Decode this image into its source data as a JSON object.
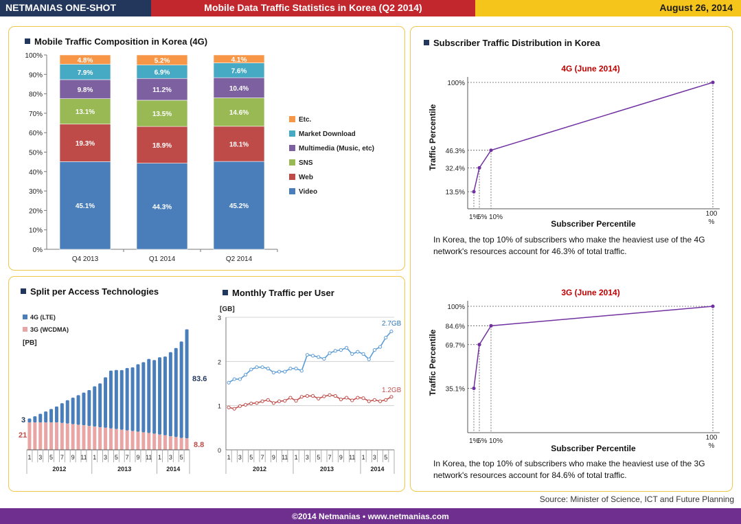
{
  "header": {
    "brand": "NETMANIAS ONE-SHOT",
    "title": "Mobile Data Traffic Statistics in Korea (Q2 2014)",
    "date": "August 26, 2014"
  },
  "panels": {
    "composition_title": "Mobile Traffic Composition in Korea (4G)",
    "split_title": "Split per Access Technologies",
    "monthly_title": "Monthly Traffic per User",
    "distribution_title": "Subscriber Traffic Distribution in Korea"
  },
  "notes": {
    "lte": "In Korea, the top 10% of subscribers who make the heaviest use of the 4G network's resources account for 46.3% of total traffic.",
    "wcdma": "In Korea, the top 10% of subscribers who make the heaviest use of the 3G network's resources account for 84.6% of total traffic."
  },
  "source": "Source: Minister of Science, ICT and Future Planning",
  "footer": "©2014 Netmanias • www.netmanias.com",
  "colors": {
    "video": "#4a7ebb",
    "web": "#be4b48",
    "sns": "#98b954",
    "multimedia": "#7d60a0",
    "market": "#46aac5",
    "etc": "#f79646",
    "lte": "#4a7ebb",
    "wcdma": "#e9a5a3",
    "curve": "#7030a0",
    "monthly_lte": "#5b9bd5",
    "monthly_3g": "#c0504d"
  },
  "chart_data": [
    {
      "type": "bar",
      "stacked": true,
      "title": "Mobile Traffic Composition in Korea (4G)",
      "categories": [
        "Q4 2013",
        "Q1 2014",
        "Q2 2014"
      ],
      "yticks": [
        "0%",
        "10%",
        "20%",
        "30%",
        "40%",
        "50%",
        "60%",
        "70%",
        "80%",
        "90%",
        "100%"
      ],
      "ylim": [
        0,
        100
      ],
      "legend_position": "right",
      "series": [
        {
          "name": "Video",
          "values": [
            45.1,
            44.3,
            45.2
          ],
          "labels": [
            "45.1%",
            "44.3%",
            "45.2%"
          ]
        },
        {
          "name": "Web",
          "values": [
            19.3,
            18.9,
            18.1
          ],
          "labels": [
            "19.3%",
            "18.9%",
            "18.1%"
          ]
        },
        {
          "name": "SNS",
          "values": [
            13.1,
            13.5,
            14.6
          ],
          "labels": [
            "13.1%",
            "13.5%",
            "14.6%"
          ]
        },
        {
          "name": "Multimedia (Music, etc)",
          "values": [
            9.8,
            11.2,
            10.4
          ],
          "labels": [
            "9.8%",
            "11.2%",
            "10.4%"
          ]
        },
        {
          "name": "Market Download",
          "values": [
            7.9,
            6.9,
            7.6
          ],
          "labels": [
            "7.9%",
            "6.9%",
            "7.6%"
          ]
        },
        {
          "name": "Etc.",
          "values": [
            4.8,
            5.2,
            4.1
          ],
          "labels": [
            "4.8%",
            "5.2%",
            "4.1%"
          ]
        }
      ]
    },
    {
      "type": "bar",
      "stacked": true,
      "title": "Split per Access Technologies",
      "ylabel": "[PB]",
      "months": [
        "1",
        "2",
        "3",
        "4",
        "5",
        "6",
        "7",
        "8",
        "9",
        "10",
        "11",
        "12",
        "1",
        "2",
        "3",
        "4",
        "5",
        "6",
        "7",
        "8",
        "9",
        "10",
        "11",
        "12",
        "1",
        "2",
        "3",
        "4",
        "5",
        "6"
      ],
      "tick_labels": [
        "1",
        "3",
        "5",
        "7",
        "9",
        "11",
        "1",
        "3",
        "5",
        "7",
        "9",
        "11",
        "1",
        "3",
        "5"
      ],
      "years": [
        "2012",
        "2013",
        "2014"
      ],
      "legend_position": "top-left",
      "series": [
        {
          "name": "4G (LTE)",
          "values": [
            3,
            4.7,
            6.6,
            8.4,
            10.3,
            12.2,
            15.1,
            17.9,
            20.3,
            22.7,
            25.1,
            27.5,
            30.9,
            33.6,
            38.7,
            44.3,
            45.3,
            45.7,
            47.8,
            48.8,
            51.7,
            53.8,
            56.8,
            56.4,
            59.2,
            60.4,
            64.5,
            68.2,
            73.9,
            83.6
          ]
        },
        {
          "name": "3G (WCDMA)",
          "values": [
            21,
            21,
            21,
            21,
            21,
            21,
            20.6,
            20.1,
            19.7,
            19.2,
            18.8,
            18.3,
            17.8,
            17.3,
            16.9,
            16.4,
            15.9,
            15.4,
            14.9,
            14.4,
            13.9,
            13.4,
            12.9,
            12.4,
            11.7,
            11.1,
            10.4,
            9.8,
            9.1,
            8.8
          ]
        }
      ],
      "value_labels": {
        "lte_start": "3",
        "wcdma_start": "21",
        "lte_end": "83.6",
        "wcdma_end": "8.8"
      }
    },
    {
      "type": "line",
      "title": "Monthly Traffic per User",
      "ylabel": "[GB]",
      "ylim": [
        0,
        3
      ],
      "yticks": [
        "0",
        "1",
        "2",
        "3"
      ],
      "tick_labels": [
        "1",
        "3",
        "5",
        "7",
        "9",
        "11",
        "1",
        "3",
        "5",
        "7",
        "9",
        "11",
        "1",
        "3",
        "5"
      ],
      "years": [
        "2012",
        "2013",
        "2014"
      ],
      "series": [
        {
          "name": "",
          "end_label": "2.7GB",
          "values": [
            1.52,
            1.6,
            1.6,
            1.7,
            1.82,
            1.87,
            1.87,
            1.84,
            1.75,
            1.77,
            1.77,
            1.84,
            1.84,
            1.79,
            2.15,
            2.13,
            2.1,
            2.06,
            2.19,
            2.24,
            2.26,
            2.31,
            2.17,
            2.22,
            2.17,
            2.05,
            2.26,
            2.33,
            2.54,
            2.68
          ]
        },
        {
          "name": "",
          "end_label": "1.2GB",
          "values": [
            0.96,
            0.93,
            0.99,
            1.02,
            1.05,
            1.06,
            1.1,
            1.13,
            1.06,
            1.1,
            1.11,
            1.18,
            1.11,
            1.2,
            1.22,
            1.22,
            1.16,
            1.21,
            1.24,
            1.22,
            1.14,
            1.18,
            1.12,
            1.18,
            1.17,
            1.1,
            1.13,
            1.1,
            1.13,
            1.2
          ]
        }
      ]
    },
    {
      "type": "line",
      "title": "4G (June 2014)",
      "xlabel": "Subscriber Percentile",
      "ylabel": "Traffic Percentile",
      "x": [
        1,
        5,
        10,
        100
      ],
      "y": [
        13.5,
        32.4,
        46.3,
        100
      ],
      "ytick_labels": [
        "13.5%",
        "32.4%",
        "46.3%",
        "100%"
      ],
      "xtick_labels": [
        "1%",
        "5%",
        "10%",
        "100 %"
      ]
    },
    {
      "type": "line",
      "title": "3G (June 2014)",
      "xlabel": "Subscriber Percentile",
      "ylabel": "Traffic Percentile",
      "x": [
        1,
        5,
        10,
        100
      ],
      "y": [
        35.1,
        69.7,
        84.6,
        100
      ],
      "ytick_labels": [
        "35.1%",
        "69.7%",
        "84.6%",
        "100%"
      ],
      "xtick_labels": [
        "1%",
        "5%",
        "10%",
        "100 %"
      ]
    }
  ]
}
